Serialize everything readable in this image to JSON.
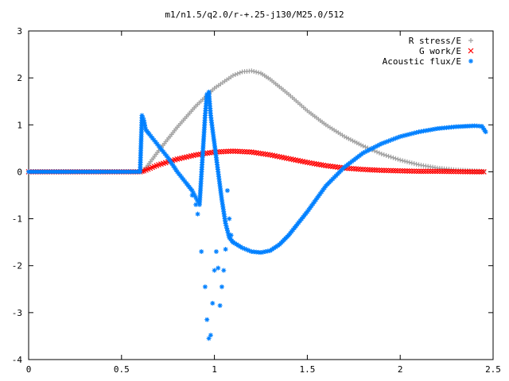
{
  "chart_data": {
    "type": "scatter",
    "title": "m1/n1.5/q2.0/r-+.25-j130/M25.0/512",
    "xlabel": "",
    "ylabel": "",
    "xlim": [
      0,
      2.5
    ],
    "ylim": [
      -4,
      3
    ],
    "xticks": [
      "0",
      "0.5",
      "1",
      "1.5",
      "2",
      "2.5"
    ],
    "yticks": [
      "-4",
      "-3",
      "-2",
      "-1",
      "0",
      "1",
      "2",
      "3"
    ],
    "grid": false,
    "legend_position": "top-right",
    "series": [
      {
        "name": "R stress/E",
        "marker": "+",
        "color": "#a0a0a0",
        "x": [
          0,
          0.2,
          0.4,
          0.6,
          0.62,
          0.7,
          0.8,
          0.9,
          1.0,
          1.1,
          1.15,
          1.2,
          1.25,
          1.3,
          1.4,
          1.5,
          1.6,
          1.7,
          1.8,
          1.9,
          2.0,
          2.1,
          2.2,
          2.3,
          2.4,
          2.45
        ],
        "y": [
          0,
          0,
          0,
          0,
          0.02,
          0.45,
          0.95,
          1.4,
          1.78,
          2.05,
          2.13,
          2.15,
          2.1,
          1.97,
          1.65,
          1.3,
          1.0,
          0.75,
          0.55,
          0.38,
          0.25,
          0.15,
          0.08,
          0.04,
          0.02,
          0.01
        ]
      },
      {
        "name": "G work/E",
        "marker": "x",
        "color": "#ff0000",
        "x": [
          0,
          0.2,
          0.4,
          0.6,
          0.62,
          0.7,
          0.8,
          0.9,
          1.0,
          1.1,
          1.2,
          1.3,
          1.4,
          1.5,
          1.6,
          1.7,
          1.8,
          1.9,
          2.0,
          2.1,
          2.2,
          2.3,
          2.4,
          2.45
        ],
        "y": [
          0,
          0,
          0,
          0,
          0.02,
          0.15,
          0.27,
          0.36,
          0.42,
          0.44,
          0.42,
          0.36,
          0.28,
          0.2,
          0.13,
          0.08,
          0.05,
          0.03,
          0.02,
          0.01,
          0.01,
          0.005,
          0.0,
          0.0
        ]
      },
      {
        "name": "Acoustic flux/E",
        "marker": "*",
        "color": "#0080ff",
        "x": [
          0,
          0.2,
          0.4,
          0.6,
          0.61,
          0.62,
          0.63,
          0.65,
          0.7,
          0.75,
          0.8,
          0.85,
          0.88,
          0.9,
          0.92,
          0.95,
          0.96,
          0.97,
          0.98,
          1.0,
          1.02,
          1.04,
          1.06,
          1.08,
          1.1,
          1.15,
          1.2,
          1.25,
          1.3,
          1.35,
          1.4,
          1.5,
          1.6,
          1.7,
          1.8,
          1.9,
          2.0,
          2.1,
          2.2,
          2.3,
          2.4,
          2.44,
          2.46
        ],
        "y": [
          0,
          0,
          0,
          0,
          1.2,
          1.1,
          0.9,
          0.8,
          0.55,
          0.3,
          0.0,
          -0.25,
          -0.4,
          -0.55,
          -0.7,
          1.2,
          1.65,
          1.7,
          1.2,
          0.6,
          0.0,
          -0.6,
          -1.1,
          -1.4,
          -1.5,
          -1.62,
          -1.7,
          -1.72,
          -1.68,
          -1.55,
          -1.35,
          -0.85,
          -0.3,
          0.1,
          0.4,
          0.6,
          0.75,
          0.85,
          0.92,
          0.96,
          0.98,
          0.97,
          0.85
        ]
      },
      {
        "name": "",
        "marker": "*",
        "color": "#0080ff",
        "x": [
          0.88,
          0.9,
          0.91,
          0.93,
          0.95,
          0.96,
          0.97,
          0.98,
          0.99,
          1.0,
          1.01,
          1.02,
          1.03,
          1.04,
          1.05,
          1.06,
          1.07,
          1.08,
          1.09,
          1.1
        ],
        "y": [
          -0.5,
          -0.7,
          -0.9,
          -1.7,
          -2.45,
          -3.15,
          -3.55,
          -3.48,
          -2.8,
          -2.1,
          -1.7,
          -2.05,
          -2.85,
          -2.45,
          -2.1,
          -1.65,
          -0.4,
          -1.0,
          -1.35,
          -1.5
        ]
      }
    ]
  }
}
